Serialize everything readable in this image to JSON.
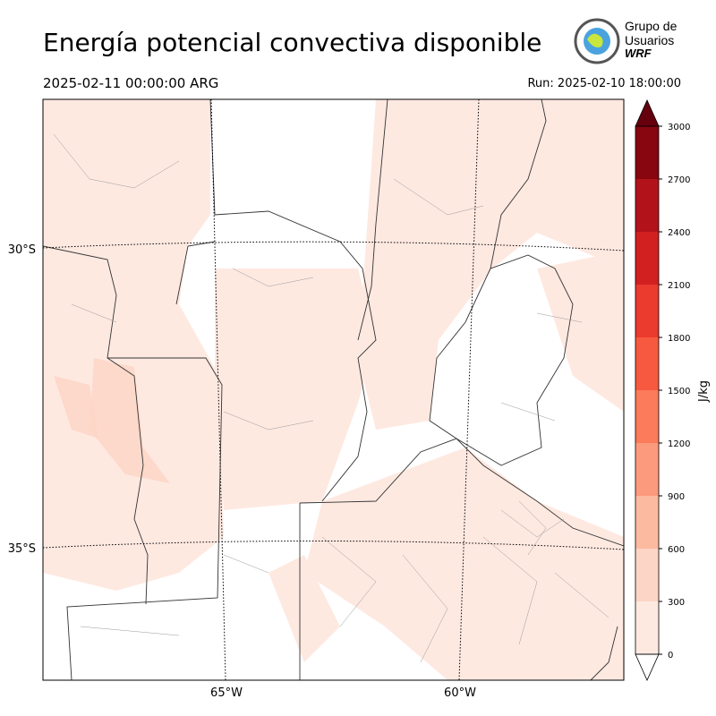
{
  "header": {
    "title": "Energía potencial convectiva disponible",
    "valid_time": "2025-02-11 00:00:00 ARG",
    "run": "Run: 2025-02-10 18:00:00"
  },
  "logo": {
    "lines": [
      "Grupo de",
      "Usuarios",
      "WRF"
    ]
  },
  "map": {
    "lat_labels": [
      "30°S",
      "35°S"
    ],
    "lon_labels": [
      "65°W",
      "60°W"
    ]
  },
  "colorbar": {
    "label": "J/kg",
    "lim": [
      0,
      3000
    ],
    "ticks": [
      0,
      300,
      600,
      900,
      1200,
      1500,
      1800,
      2100,
      2400,
      2700,
      3000
    ],
    "colors": [
      "#fee9e1",
      "#fcd5c6",
      "#fcbaa0",
      "#fc9a7d",
      "#fb7b5b",
      "#f6593f",
      "#eb3a2e",
      "#d21f20",
      "#b2131a",
      "#87060f"
    ],
    "over_color": "#67000d",
    "under_color": "#ffffff"
  }
}
